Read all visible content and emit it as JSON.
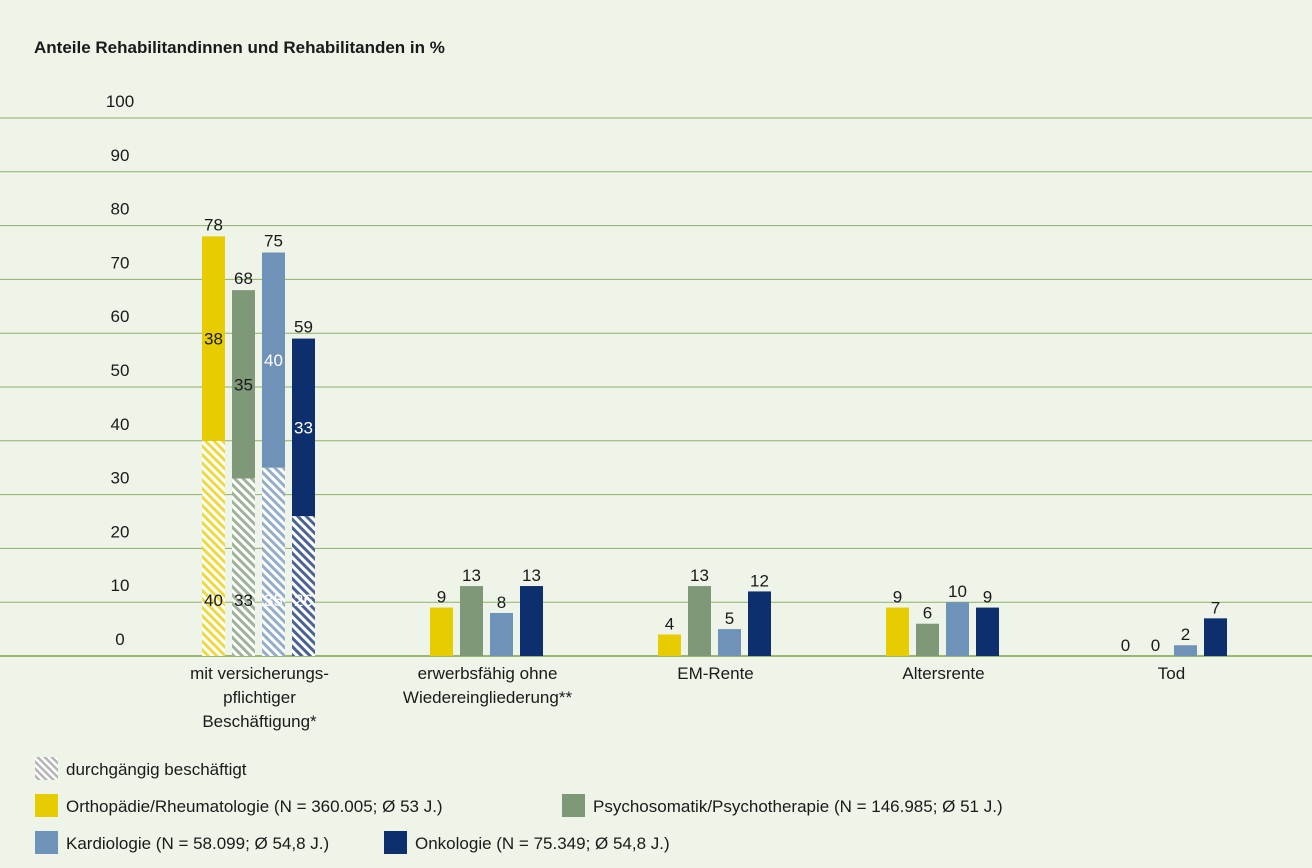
{
  "chart_data": {
    "type": "bar",
    "title": "Anteile Rehabilitandinnen und Rehabilitanden in %",
    "ylim": [
      0,
      100
    ],
    "y_ticks": [
      "0",
      "10",
      "20",
      "30",
      "40",
      "50",
      "60",
      "70",
      "80",
      "90",
      "100"
    ],
    "grid": true,
    "categories": [
      [
        "mit versicherungs-",
        "pflichtiger",
        "Beschäftigung*"
      ],
      [
        "erwerbsfähig ohne",
        "Wiedereingliederung**"
      ],
      [
        "EM-Rente"
      ],
      [
        "Altersrente"
      ],
      [
        "Tod"
      ]
    ],
    "hatch_legend": "durchgängig beschäftigt",
    "series": [
      {
        "name": "Orthopädie/Rheumatologie (N = 360.005; Ø 53 J.)",
        "color": "#e6cc00",
        "totals": [
          78,
          9,
          4,
          9,
          0
        ],
        "continuous": 40,
        "upper": 38
      },
      {
        "name": "Psychosomatik/Psychotherapie (N = 146.985; Ø 51 J.)",
        "color": "#7f9878",
        "totals": [
          68,
          13,
          13,
          6,
          0
        ],
        "continuous": 33,
        "upper": 35
      },
      {
        "name": "Kardiologie (N = 58.099; Ø 54,8 J.)",
        "color": "#6f93b8",
        "totals": [
          75,
          8,
          5,
          10,
          2
        ],
        "continuous": 35,
        "upper": 40
      },
      {
        "name": "Onkologie (N = 75.349; Ø 54,8 J.)",
        "color": "#0e2f6e",
        "totals": [
          59,
          13,
          12,
          9,
          7
        ],
        "continuous": 26,
        "upper": 33
      }
    ]
  }
}
